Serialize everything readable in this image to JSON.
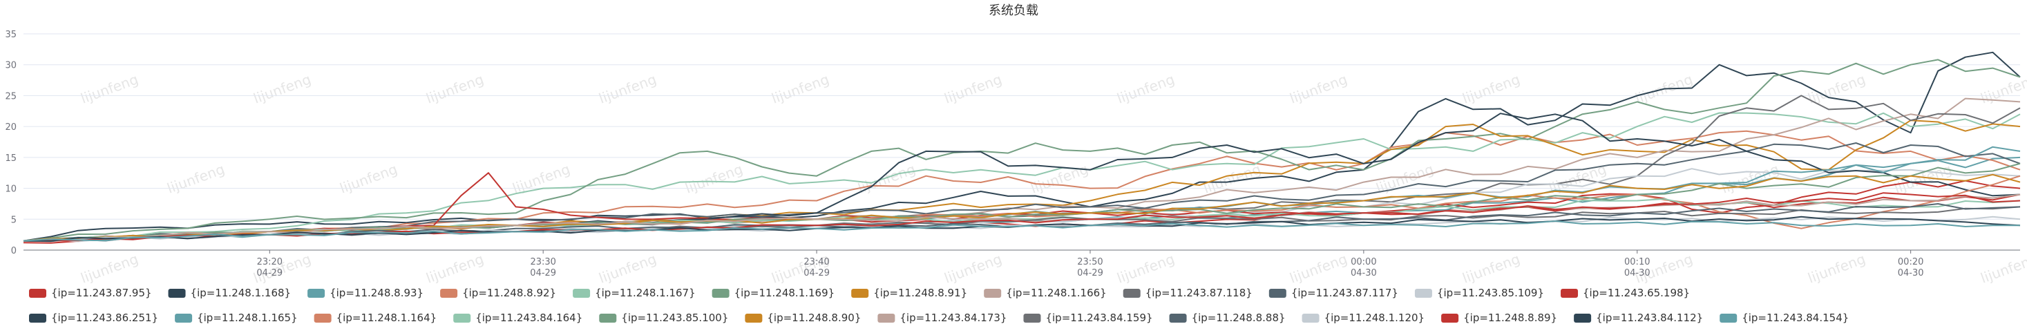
{
  "chart_data": {
    "type": "line",
    "title": "系统负载",
    "watermark": "lijunfeng",
    "ylim": [
      0,
      35
    ],
    "yticks": [
      0,
      5,
      10,
      15,
      20,
      25,
      30,
      35
    ],
    "x_ticks": [
      {
        "time": "23:20",
        "date": "04-29",
        "index": 9
      },
      {
        "time": "23:30",
        "date": "04-29",
        "index": 19
      },
      {
        "time": "23:40",
        "date": "04-29",
        "index": 29
      },
      {
        "time": "23:50",
        "date": "04-29",
        "index": 39
      },
      {
        "time": "00:00",
        "date": "04-30",
        "index": 49
      },
      {
        "time": "00:10",
        "date": "04-30",
        "index": 59
      },
      {
        "time": "00:20",
        "date": "04-30",
        "index": 69
      }
    ],
    "x_count": 74,
    "grid": true,
    "legend_position": "bottom",
    "series": [
      {
        "name": "{ip=11.243.87.95}",
        "color": "#c23531",
        "anchors": [
          [
            0,
            1.2
          ],
          [
            9,
            3
          ],
          [
            18,
            4
          ],
          [
            25,
            5
          ],
          [
            29,
            5
          ],
          [
            39,
            4
          ],
          [
            49,
            6
          ],
          [
            59,
            7
          ],
          [
            69,
            8
          ],
          [
            73,
            9
          ]
        ]
      },
      {
        "name": "{ip=11.248.1.168}",
        "color": "#2f4554",
        "anchors": [
          [
            0,
            1.5
          ],
          [
            3,
            3.5
          ],
          [
            9,
            4.2
          ],
          [
            18,
            5
          ],
          [
            22,
            5.5
          ],
          [
            29,
            5.5
          ],
          [
            35,
            9.5
          ],
          [
            39,
            7
          ],
          [
            44,
            11
          ],
          [
            49,
            13
          ],
          [
            52,
            24.5
          ],
          [
            56,
            21
          ],
          [
            59,
            25
          ],
          [
            62,
            30
          ],
          [
            65,
            27
          ],
          [
            67,
            24
          ],
          [
            69,
            19
          ],
          [
            70,
            29
          ],
          [
            72,
            32
          ],
          [
            73,
            28
          ]
        ]
      },
      {
        "name": "{ip=11.248.8.93}",
        "color": "#61a0a8",
        "anchors": [
          [
            0,
            1.5
          ],
          [
            9,
            2.5
          ],
          [
            18,
            3
          ],
          [
            29,
            4
          ],
          [
            39,
            5
          ],
          [
            49,
            6
          ],
          [
            59,
            9
          ],
          [
            69,
            14
          ],
          [
            73,
            15
          ]
        ]
      },
      {
        "name": "{ip=11.248.8.92}",
        "color": "#d48265",
        "anchors": [
          [
            0,
            1.5
          ],
          [
            9,
            3
          ],
          [
            18,
            5
          ],
          [
            19,
            6
          ],
          [
            29,
            8
          ],
          [
            33,
            12
          ],
          [
            39,
            10
          ],
          [
            43,
            14
          ],
          [
            49,
            14
          ],
          [
            52,
            19
          ],
          [
            59,
            17
          ],
          [
            62,
            19
          ],
          [
            69,
            16
          ],
          [
            73,
            13
          ]
        ]
      },
      {
        "name": "{ip=11.248.1.167}",
        "color": "#91c7ae",
        "anchors": [
          [
            0,
            1.5
          ],
          [
            9,
            3.5
          ],
          [
            14,
            6
          ],
          [
            19,
            10
          ],
          [
            24,
            11
          ],
          [
            29,
            11
          ],
          [
            35,
            13
          ],
          [
            39,
            13
          ],
          [
            44,
            14
          ],
          [
            49,
            18
          ],
          [
            53,
            16
          ],
          [
            59,
            20
          ],
          [
            64,
            22
          ],
          [
            69,
            20
          ],
          [
            73,
            22
          ]
        ]
      },
      {
        "name": "{ip=11.248.1.169}",
        "color": "#749f83",
        "anchors": [
          [
            0,
            1.5
          ],
          [
            9,
            5
          ],
          [
            18,
            6
          ],
          [
            19,
            8
          ],
          [
            23,
            14
          ],
          [
            25,
            16
          ],
          [
            29,
            12
          ],
          [
            31,
            16
          ],
          [
            35,
            16
          ],
          [
            39,
            16
          ],
          [
            42,
            17
          ],
          [
            49,
            13
          ],
          [
            52,
            18
          ],
          [
            56,
            20
          ],
          [
            59,
            24
          ],
          [
            62,
            23
          ],
          [
            65,
            29
          ],
          [
            69,
            30
          ],
          [
            73,
            28
          ]
        ]
      },
      {
        "name": "{ip=11.248.8.91}",
        "color": "#ca8622",
        "anchors": [
          [
            0,
            1.5
          ],
          [
            9,
            3
          ],
          [
            18,
            4
          ],
          [
            29,
            6
          ],
          [
            39,
            8
          ],
          [
            44,
            12
          ],
          [
            49,
            14
          ],
          [
            52,
            20
          ],
          [
            56,
            17
          ],
          [
            59,
            16
          ],
          [
            63,
            17
          ],
          [
            66,
            13
          ],
          [
            69,
            21
          ],
          [
            73,
            20
          ]
        ]
      },
      {
        "name": "{ip=11.248.1.166}",
        "color": "#bda29a",
        "anchors": [
          [
            0,
            1.5
          ],
          [
            9,
            3
          ],
          [
            18,
            4
          ],
          [
            29,
            5
          ],
          [
            39,
            7
          ],
          [
            49,
            11
          ],
          [
            59,
            15
          ],
          [
            63,
            18
          ],
          [
            69,
            22
          ],
          [
            73,
            24
          ]
        ]
      },
      {
        "name": "{ip=11.243.87.118}",
        "color": "#6e7074",
        "anchors": [
          [
            0,
            1.5
          ],
          [
            9,
            3
          ],
          [
            18,
            4
          ],
          [
            29,
            5
          ],
          [
            39,
            6
          ],
          [
            49,
            8
          ],
          [
            59,
            12
          ],
          [
            63,
            23
          ],
          [
            65,
            25
          ],
          [
            69,
            21
          ],
          [
            73,
            23
          ]
        ]
      },
      {
        "name": "{ip=11.243.87.117}",
        "color": "#546570",
        "anchors": [
          [
            0,
            1.5
          ],
          [
            9,
            3
          ],
          [
            18,
            5
          ],
          [
            29,
            6
          ],
          [
            39,
            7
          ],
          [
            49,
            9
          ],
          [
            59,
            14
          ],
          [
            63,
            16
          ],
          [
            69,
            17
          ],
          [
            73,
            14
          ]
        ]
      },
      {
        "name": "{ip=11.243.85.109}",
        "color": "#c4ccd3",
        "anchors": [
          [
            0,
            1.5
          ],
          [
            9,
            2.5
          ],
          [
            18,
            3
          ],
          [
            29,
            4
          ],
          [
            39,
            5
          ],
          [
            49,
            7
          ],
          [
            59,
            12
          ],
          [
            69,
            13
          ],
          [
            73,
            12
          ]
        ]
      },
      {
        "name": "{ip=11.243.65.198}",
        "color": "#c23531",
        "anchors": [
          [
            0,
            1.5
          ],
          [
            9,
            3
          ],
          [
            15,
            4
          ],
          [
            17,
            12.5
          ],
          [
            18,
            7
          ],
          [
            22,
            5
          ],
          [
            29,
            5
          ],
          [
            39,
            6
          ],
          [
            49,
            6
          ],
          [
            59,
            9
          ],
          [
            62,
            6
          ],
          [
            69,
            11
          ],
          [
            73,
            10
          ]
        ]
      },
      {
        "name": "{ip=11.243.86.251}",
        "color": "#2f4554",
        "anchors": [
          [
            0,
            1.5
          ],
          [
            9,
            3
          ],
          [
            18,
            4
          ],
          [
            25,
            5
          ],
          [
            29,
            6
          ],
          [
            33,
            16
          ],
          [
            39,
            13
          ],
          [
            42,
            15
          ],
          [
            44,
            17
          ],
          [
            49,
            14
          ],
          [
            52,
            19
          ],
          [
            56,
            22
          ],
          [
            59,
            18
          ],
          [
            63,
            16
          ],
          [
            69,
            11
          ],
          [
            73,
            9
          ]
        ]
      },
      {
        "name": "{ip=11.248.1.165}",
        "color": "#61a0a8",
        "anchors": [
          [
            0,
            1.5
          ],
          [
            9,
            3
          ],
          [
            18,
            4
          ],
          [
            29,
            5
          ],
          [
            39,
            6
          ],
          [
            49,
            8
          ],
          [
            59,
            10
          ],
          [
            69,
            14
          ],
          [
            73,
            16
          ]
        ]
      },
      {
        "name": "{ip=11.248.1.164}",
        "color": "#d48265",
        "anchors": [
          [
            0,
            1.5
          ],
          [
            9,
            3
          ],
          [
            18,
            4
          ],
          [
            29,
            5
          ],
          [
            39,
            6
          ],
          [
            49,
            7
          ],
          [
            59,
            9
          ],
          [
            65,
            3.5
          ],
          [
            69,
            7
          ],
          [
            73,
            12
          ]
        ]
      },
      {
        "name": "{ip=11.243.84.164}",
        "color": "#91c7ae",
        "anchors": [
          [
            0,
            1.5
          ],
          [
            9,
            3
          ],
          [
            18,
            4
          ],
          [
            29,
            5
          ],
          [
            39,
            5
          ],
          [
            49,
            6
          ],
          [
            59,
            8
          ],
          [
            69,
            7
          ],
          [
            73,
            8
          ]
        ]
      },
      {
        "name": "{ip=11.243.85.100}",
        "color": "#749f83",
        "anchors": [
          [
            0,
            1.5
          ],
          [
            9,
            3
          ],
          [
            18,
            4
          ],
          [
            29,
            5
          ],
          [
            39,
            6
          ],
          [
            49,
            7
          ],
          [
            59,
            9
          ],
          [
            69,
            12
          ],
          [
            73,
            14
          ]
        ]
      },
      {
        "name": "{ip=11.248.8.90}",
        "color": "#ca8622",
        "anchors": [
          [
            0,
            1.5
          ],
          [
            9,
            3
          ],
          [
            18,
            4
          ],
          [
            29,
            5
          ],
          [
            39,
            6
          ],
          [
            49,
            8
          ],
          [
            59,
            10
          ],
          [
            69,
            12
          ],
          [
            73,
            11
          ]
        ]
      },
      {
        "name": "{ip=11.243.84.173}",
        "color": "#bda29a",
        "anchors": [
          [
            0,
            1.5
          ],
          [
            9,
            3
          ],
          [
            18,
            4
          ],
          [
            29,
            5
          ],
          [
            39,
            5
          ],
          [
            49,
            6
          ],
          [
            59,
            7
          ],
          [
            69,
            8
          ],
          [
            73,
            9
          ]
        ]
      },
      {
        "name": "{ip=11.243.84.159}",
        "color": "#6e7074",
        "anchors": [
          [
            0,
            1.5
          ],
          [
            9,
            2.5
          ],
          [
            18,
            3
          ],
          [
            29,
            4
          ],
          [
            39,
            5
          ],
          [
            49,
            5
          ],
          [
            59,
            6
          ],
          [
            69,
            6
          ],
          [
            73,
            7
          ]
        ]
      },
      {
        "name": "{ip=11.248.8.88}",
        "color": "#546570",
        "anchors": [
          [
            0,
            1.5
          ],
          [
            9,
            2.5
          ],
          [
            18,
            3.5
          ],
          [
            29,
            4
          ],
          [
            39,
            4
          ],
          [
            49,
            5
          ],
          [
            59,
            6
          ],
          [
            69,
            7
          ],
          [
            73,
            7
          ]
        ]
      },
      {
        "name": "{ip=11.248.1.120}",
        "color": "#c4ccd3",
        "anchors": [
          [
            0,
            1.5
          ],
          [
            9,
            2.5
          ],
          [
            18,
            3
          ],
          [
            29,
            3.5
          ],
          [
            39,
            4
          ],
          [
            49,
            4
          ],
          [
            59,
            5
          ],
          [
            69,
            5
          ],
          [
            73,
            5
          ]
        ]
      },
      {
        "name": "{ip=11.248.8.89}",
        "color": "#c23531",
        "anchors": [
          [
            0,
            1.5
          ],
          [
            9,
            2.5
          ],
          [
            18,
            3
          ],
          [
            29,
            4
          ],
          [
            39,
            5
          ],
          [
            49,
            6
          ],
          [
            59,
            7
          ],
          [
            69,
            9
          ],
          [
            73,
            8
          ]
        ]
      },
      {
        "name": "{ip=11.243.84.112}",
        "color": "#2f4554",
        "anchors": [
          [
            0,
            1.5
          ],
          [
            9,
            2.5
          ],
          [
            18,
            3
          ],
          [
            29,
            3.5
          ],
          [
            39,
            4
          ],
          [
            49,
            4.5
          ],
          [
            59,
            5
          ],
          [
            69,
            5
          ],
          [
            73,
            4
          ]
        ]
      },
      {
        "name": "{ip=11.243.84.154}",
        "color": "#61a0a8",
        "anchors": [
          [
            0,
            1.5
          ],
          [
            9,
            2.5
          ],
          [
            18,
            3
          ],
          [
            29,
            3.5
          ],
          [
            39,
            4
          ],
          [
            49,
            4
          ],
          [
            59,
            4.5
          ],
          [
            69,
            4
          ],
          [
            73,
            4
          ]
        ]
      }
    ]
  }
}
